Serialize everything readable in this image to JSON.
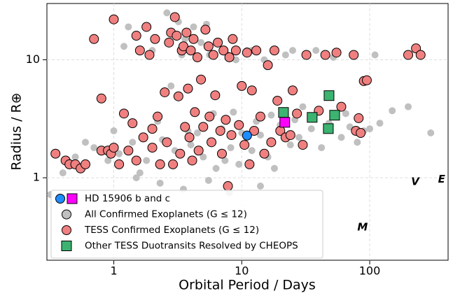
{
  "chart_data": {
    "type": "scatter",
    "xlabel": "Orbital Period / Days",
    "ylabel": "Radius / R⊕",
    "xscale": "log",
    "yscale": "log",
    "grid": true,
    "legend": "lower left",
    "xlim": [
      0.3,
      410
    ],
    "ylim": [
      0.2,
      30
    ],
    "xticks": [
      1,
      10,
      100
    ],
    "yticks": [
      1,
      10
    ],
    "series": [
      {
        "name": "HD 15906 b and c",
        "colors": [
          "#1e8cff",
          "#ff00ff"
        ],
        "markers": [
          "circle",
          "square"
        ],
        "x": [
          11.0,
          21.7
        ],
        "y": [
          2.28,
          2.95
        ]
      },
      {
        "name": "All Confirmed Exoplanets (G ≤ 12)",
        "color": "#c0c0c0",
        "marker": "circle",
        "edge": false,
        "x": [
          0.32,
          0.4,
          0.5,
          0.6,
          0.7,
          0.9,
          1.0,
          1.1,
          1.2,
          1.3,
          1.4,
          1.6,
          1.8,
          2.0,
          2.2,
          2.4,
          2.6,
          2.8,
          3.0,
          3.2,
          3.4,
          3.6,
          3.8,
          4,
          4.2,
          4.5,
          4.8,
          5,
          5.3,
          5.6,
          6,
          6.3,
          6.6,
          7,
          7.4,
          7.8,
          8.2,
          8.6,
          9,
          9.5,
          10,
          11,
          12,
          13,
          14,
          15,
          16,
          17,
          18,
          20,
          22,
          24,
          26,
          28,
          30,
          35,
          38,
          42,
          48,
          52,
          60,
          65,
          70,
          80,
          90,
          100,
          110,
          120,
          150,
          200,
          300,
          0.75,
          2.3,
          3.5,
          5.5,
          8,
          14,
          1.5,
          12,
          25
        ],
        "y": [
          0.72,
          1.1,
          1.5,
          2.0,
          1.8,
          1.4,
          2.5,
          1.6,
          13,
          19,
          2.0,
          1.1,
          1.4,
          12,
          3.0,
          2.1,
          25,
          6,
          1.7,
          21,
          11,
          15,
          2.5,
          1.9,
          19,
          2.4,
          14,
          1.5,
          20,
          11,
          3.5,
          1.2,
          14,
          2.6,
          1.4,
          11,
          1.8,
          3.6,
          10,
          1.3,
          2.4,
          12,
          1.7,
          3.0,
          2.3,
          10,
          1.5,
          3.4,
          1.2,
          2.8,
          11,
          1.9,
          3.1,
          2.2,
          4,
          2.6,
          12,
          1.8,
          2.9,
          10.5,
          2.2,
          3.5,
          2.7,
          2.0,
          2.5,
          2.6,
          11,
          2.9,
          3.7,
          4,
          2.4,
          0.5,
          0.9,
          0.8,
          0.95,
          0.75,
          0.85,
          1.0,
          12,
          12
        ]
      },
      {
        "name": "TESS Confirmed Exoplanets (G ≤ 12)",
        "color": "#f08080",
        "marker": "circle",
        "edge": true,
        "x": [
          0.35,
          0.42,
          0.45,
          0.5,
          0.55,
          0.6,
          0.7,
          0.8,
          0.8,
          0.9,
          0.95,
          1.0,
          1.0,
          1.1,
          1.2,
          1.3,
          1.4,
          1.5,
          1.5,
          1.6,
          1.7,
          1.8,
          1.9,
          2.0,
          2.0,
          2.1,
          2.2,
          2.3,
          2.5,
          2.6,
          2.7,
          2.8,
          2.9,
          3.0,
          3.1,
          3.2,
          3.3,
          3.4,
          3.5,
          3.6,
          3.7,
          3.8,
          3.9,
          4.0,
          4.1,
          4.2,
          4.3,
          4.5,
          4.6,
          4.8,
          5.0,
          5.2,
          5.5,
          5.6,
          5.8,
          6.0,
          6.2,
          6.5,
          6.8,
          7.0,
          7.2,
          7.5,
          7.8,
          8.0,
          8.3,
          8.5,
          9.0,
          9.5,
          10.0,
          10.5,
          11,
          11.5,
          12,
          12.5,
          13,
          14,
          15,
          16,
          17,
          18,
          19,
          20,
          22,
          24,
          25,
          27,
          30,
          32,
          40,
          45,
          55,
          60,
          75,
          78,
          82,
          85,
          90,
          95,
          200,
          230,
          250
        ],
        "y": [
          1.6,
          1.4,
          1.3,
          1.3,
          1.2,
          1.3,
          15,
          1.7,
          4.7,
          1.7,
          1.6,
          22,
          1.8,
          1.3,
          3.5,
          1.7,
          2.9,
          16,
          1.4,
          12,
          2.2,
          19,
          11,
          2.6,
          1.8,
          15,
          3.3,
          1.3,
          5.3,
          2.0,
          14,
          17,
          1.3,
          23,
          16,
          4.9,
          1.6,
          12,
          13,
          2.7,
          17,
          5.7,
          2.2,
          12,
          1.4,
          15,
          3.6,
          10.5,
          1.7,
          6.8,
          2.7,
          18,
          13,
          3.3,
          2.0,
          11,
          5.0,
          14,
          2.5,
          1.6,
          12,
          3.1,
          0.85,
          10.5,
          2.3,
          15,
          12,
          2.8,
          6.0,
          1.9,
          11.5,
          1.3,
          5.5,
          2.5,
          12,
          3.3,
          1.6,
          9,
          2.0,
          12,
          4.5,
          2.5,
          2.2,
          2.3,
          5.5,
          3.5,
          1.9,
          11,
          3.7,
          11,
          11.5,
          4.0,
          11,
          2.5,
          3.2,
          2.4,
          6.6,
          6.7,
          11,
          12.5,
          11
        ]
      },
      {
        "name": "Other TESS Duotransits Resolved by CHEOPS",
        "color": "#3cb371",
        "marker": "square",
        "edge": true,
        "x": [
          48.1,
          21.2,
          35.5,
          53.2,
          47.5
        ],
        "y": [
          4.97,
          3.58,
          3.25,
          3.39,
          2.61
        ]
      }
    ],
    "annotations": [
      {
        "text": "V",
        "x": 227,
        "y": 0.92
      },
      {
        "text": "E",
        "x": 365,
        "y": 0.97
      },
      {
        "text": "M",
        "x": 88,
        "y": 0.38
      }
    ]
  }
}
